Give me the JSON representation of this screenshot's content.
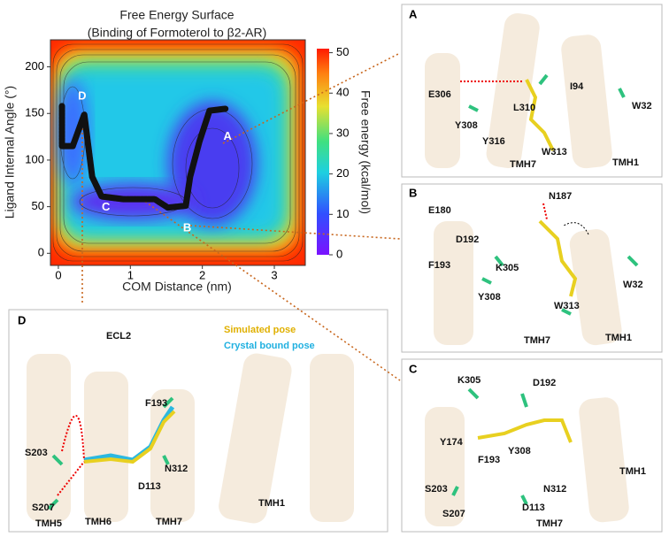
{
  "chart_data": {
    "type": "contour",
    "title": "Free Energy Surface",
    "subtitle": "(Binding of Formoterol to β2-AR)",
    "x_label": "COM Distance (nm)",
    "y_label": "Ligand Internal Angle (°)",
    "colorbar_label": "Free energy (kcal/mol)",
    "xlim": [
      -0.11,
      3.43
    ],
    "ylim": [
      -13,
      229
    ],
    "xticks": [
      0,
      1,
      2,
      3
    ],
    "yticks": [
      0,
      50,
      100,
      150,
      200
    ],
    "clim": [
      0,
      51
    ],
    "cticks": [
      0,
      10,
      20,
      30,
      40,
      50
    ],
    "path": {
      "x": [
        0.05,
        0.05,
        0.2,
        0.36,
        0.47,
        0.6,
        0.91,
        1.34,
        1.52,
        1.77,
        1.83,
        1.96,
        2.1,
        2.32
      ],
      "y": [
        158,
        115,
        115,
        149,
        82,
        61,
        58,
        58,
        49,
        51,
        82,
        120,
        153,
        155
      ]
    },
    "point_labels": [
      {
        "label": "A",
        "x": 2.35,
        "y": 125
      },
      {
        "label": "B",
        "x": 1.79,
        "y": 27
      },
      {
        "label": "C",
        "x": 0.66,
        "y": 49
      },
      {
        "label": "D",
        "x": 0.33,
        "y": 168
      }
    ]
  },
  "panels": {
    "A": {
      "label": "A",
      "texts": [
        "E306",
        "I94",
        "Y308",
        "L310",
        "W32",
        "Y316",
        "W313",
        "TMH7",
        "TMH1"
      ]
    },
    "B": {
      "label": "B",
      "texts": [
        "N187",
        "E180",
        "D192",
        "F193",
        "K305",
        "Y308",
        "W32",
        "W313",
        "TMH7",
        "TMH1"
      ]
    },
    "C": {
      "label": "C",
      "texts": [
        "K305",
        "D192",
        "Y174",
        "Y308",
        "F193",
        "N312",
        "TMH1",
        "S203",
        "D113",
        "S207",
        "TMH7"
      ]
    },
    "D": {
      "label": "D",
      "texts": [
        "ECL2",
        "F193",
        "S203",
        "N312",
        "D113",
        "TMH1",
        "S207",
        "TMH5",
        "TMH6",
        "TMH7"
      ],
      "legend": [
        "Simulated pose",
        "Crystal bound pose"
      ]
    }
  }
}
